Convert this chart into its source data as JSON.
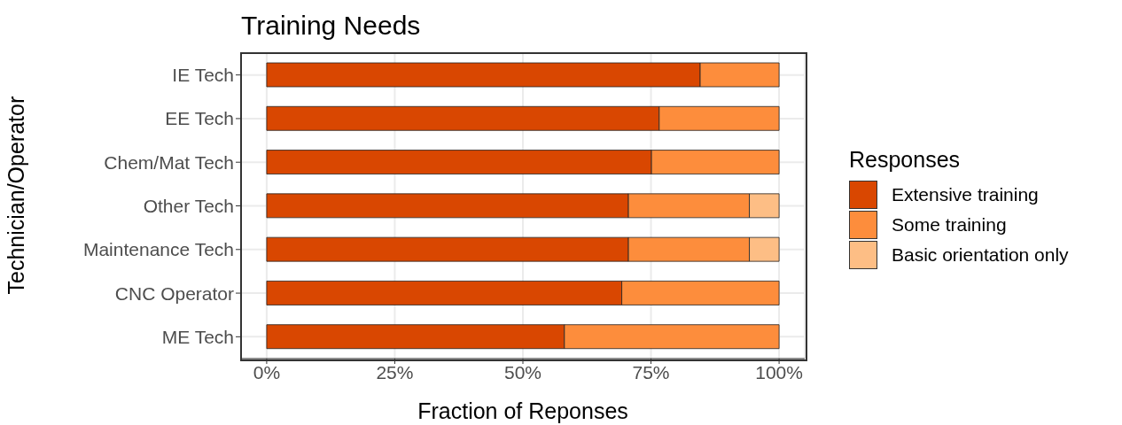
{
  "chart_data": {
    "type": "bar",
    "orientation": "horizontal",
    "stacked": true,
    "title": "Training Needs",
    "xlabel": "Fraction of Reponses",
    "ylabel": "Technician/Operator",
    "legend_title": "Responses",
    "legend": "right",
    "grid": true,
    "categories": [
      "IE Tech",
      "EE Tech",
      "Chem/Mat Tech",
      "Other Tech",
      "Maintenance Tech",
      "CNC Operator",
      "ME Tech"
    ],
    "series": [
      {
        "name": "Extensive training",
        "color": "#d94701",
        "values": [
          84.6,
          76.6,
          75.1,
          70.6,
          70.6,
          69.3,
          58.1
        ]
      },
      {
        "name": "Some training",
        "color": "#fd8d3c",
        "values": [
          15.4,
          23.4,
          24.9,
          23.6,
          23.6,
          30.7,
          41.9
        ]
      },
      {
        "name": "Basic orientation only",
        "color": "#fdbe85",
        "values": [
          null,
          null,
          null,
          5.8,
          5.8,
          null,
          null
        ]
      }
    ],
    "xlim": [
      -5,
      105
    ],
    "xticks": [
      {
        "value": 0,
        "label": "0%"
      },
      {
        "value": 25,
        "label": "25%"
      },
      {
        "value": 50,
        "label": "50%"
      },
      {
        "value": 75,
        "label": "75%"
      },
      {
        "value": 100,
        "label": "100%"
      }
    ]
  }
}
